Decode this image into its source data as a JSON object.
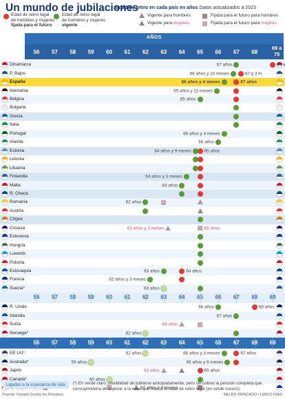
{
  "header": {
    "title": "Un mundo de jubilaciones",
    "subtitle_bold": "Edad de retiro en cada país en años",
    "subtitle_rest": " Datos actualizados a 2023"
  },
  "legend": {
    "red_text_1": "Edad de retiro legal",
    "red_text_2": "de hombres y mujeres",
    "red_text_3": "fijada para el futuro",
    "green_text_1": "Edad de retiro legal",
    "green_text_2": "de hombres y mujeres",
    "green_text_3": "vigente",
    "tri_men": "Vigente para hombres",
    "tri_women_a": "Vigente para ",
    "tri_women_b": "mujeres",
    "sq_men": "Fijada para el futuro para hombres",
    "sq_women_a": "Fijada para el futuro para ",
    "sq_women_b": "mujeres",
    "years_label": "AÑOS",
    "last_tick": "69 a 75",
    "esperanza_label": "Ligadas a la esperanza de vida"
  },
  "footnote": "(*) En verde claro, posibilidad de jubilarse anticipadamente, pero sin cobrar la pensión completa que corresponderia de esperar a la edad que marca la edad de retiro legal (en verde oscuro).",
  "source": "Fuente: Finnish Centre for Pensions",
  "credit": "BELÉN TRINCADO / CINCO DÍAS",
  "colors": {
    "red": "#e2393a",
    "green": "#5b9a36",
    "light_green": "#c6dca0",
    "grey_triangle": "#8b8b8b",
    "square": "#9c8a8a",
    "blue_header": "#2e6fb6",
    "title_blue": "#17366b",
    "spain_highlight": "#ffd83a",
    "pink_text": "#c9587e"
  },
  "chart_data": {
    "type": "scatter",
    "x_axis_ticks": [
      "56",
      "57",
      "58",
      "59",
      "60",
      "61",
      "62",
      "63",
      "64",
      "65",
      "66",
      "67",
      "68",
      "69 a 75"
    ],
    "xlim": [
      56,
      69
    ],
    "countries": [
      {
        "name": "Dinamarca",
        "points": [
          {
            "age": 67,
            "type": "green",
            "label": "67 años"
          },
          {
            "age": 69,
            "type": "red",
            "label": "69 años"
          }
        ]
      },
      {
        "name": "P. Bajos",
        "points": [
          {
            "age": 66.83,
            "type": "green",
            "label": "66 años y 10 meses"
          },
          {
            "age": 67.25,
            "type": "red",
            "label": "67 y 3 m."
          }
        ]
      },
      {
        "name": "España",
        "points": [
          {
            "age": 66.33,
            "type": "green",
            "label": "66 años y 4 meses"
          },
          {
            "age": 67,
            "type": "red",
            "label": "67 años"
          }
        ]
      },
      {
        "name": "Alemania",
        "points": [
          {
            "age": 65.92,
            "type": "green",
            "label": "65 años y 11 meses"
          },
          {
            "age": 67,
            "type": "red"
          }
        ]
      },
      {
        "name": "Bélgica",
        "points": [
          {
            "age": 65,
            "type": "green",
            "label": "65 años"
          },
          {
            "age": 67,
            "type": "red"
          }
        ]
      },
      {
        "name": "Bulgaria",
        "points": [
          {
            "age": 67,
            "type": "green"
          }
        ]
      },
      {
        "name": "Grecia",
        "points": [
          {
            "age": 67,
            "type": "green"
          }
        ]
      },
      {
        "name": "Italia",
        "points": [
          {
            "age": 67,
            "type": "green"
          }
        ]
      },
      {
        "name": "Portugal",
        "points": [
          {
            "age": 66.33,
            "type": "green",
            "label": "66 años y 4 meses"
          }
        ]
      },
      {
        "name": "Irlanda",
        "points": [
          {
            "age": 66,
            "type": "green",
            "label": "66 años"
          }
        ]
      },
      {
        "name": "Estonia",
        "points": [
          {
            "age": 64.75,
            "type": "green",
            "label": "64 años y 9 meses"
          },
          {
            "age": 65,
            "type": "red",
            "label": "65 años"
          }
        ]
      },
      {
        "name": "Letonia",
        "points": [
          {
            "age": 64.75,
            "type": "green"
          },
          {
            "age": 65,
            "type": "red"
          }
        ]
      },
      {
        "name": "Lituania",
        "points": [
          {
            "age": 64.75,
            "type": "green"
          },
          {
            "age": 65,
            "type": "red"
          }
        ]
      },
      {
        "name": "Finlandia",
        "points": [
          {
            "age": 64.25,
            "type": "green",
            "label": "64 años y 3 meses"
          },
          {
            "age": 65,
            "type": "red"
          }
        ]
      },
      {
        "name": "Malta",
        "points": [
          {
            "age": 64,
            "type": "green",
            "label": "64 años"
          },
          {
            "age": 65,
            "type": "red"
          }
        ]
      },
      {
        "name": "R. Checa",
        "points": [
          {
            "age": 64,
            "type": "green"
          },
          {
            "age": 65,
            "type": "red"
          }
        ]
      },
      {
        "name": "Rumanía",
        "points": [
          {
            "age": 62,
            "type": "green",
            "label": "62 años"
          },
          {
            "age": 65,
            "type": "tri_men"
          },
          {
            "age": 63,
            "type": "sq_women"
          },
          {
            "age": 65,
            "type": "tri_women"
          }
        ]
      },
      {
        "name": "Austria",
        "points": [
          {
            "age": 62,
            "type": "green"
          },
          {
            "age": 65,
            "type": "tri_men"
          }
        ]
      },
      {
        "name": "Chipre",
        "points": [
          {
            "age": 65,
            "type": "green"
          }
        ]
      },
      {
        "name": "Croacia",
        "points": [
          {
            "age": 63.25,
            "type": "tri_women",
            "label": "63 años y 3 meses"
          },
          {
            "age": 65,
            "type": "tri_men"
          },
          {
            "age": 65,
            "type": "sq_women",
            "label": "65 años"
          }
        ]
      },
      {
        "name": "Eslovenia",
        "points": [
          {
            "age": 65,
            "type": "green"
          }
        ]
      },
      {
        "name": "Hungría",
        "points": [
          {
            "age": 65,
            "type": "green"
          }
        ]
      },
      {
        "name": "Luxemb.",
        "points": [
          {
            "age": 65,
            "type": "green"
          }
        ]
      },
      {
        "name": "Polonia",
        "points": [
          {
            "age": 65,
            "type": "green"
          }
        ]
      },
      {
        "name": "Eslovaquia",
        "points": [
          {
            "age": 63,
            "type": "green",
            "label": "63 años"
          },
          {
            "age": 64,
            "type": "red",
            "label": "64 años"
          }
        ]
      },
      {
        "name": "Francia",
        "points": [
          {
            "age": 62.25,
            "type": "green",
            "label": "62 años y 3 meses"
          },
          {
            "age": 64,
            "type": "red"
          }
        ]
      },
      {
        "name": "Suecia*",
        "points": [
          {
            "age": 63,
            "type": "light_green",
            "label": "63 años"
          },
          {
            "age": 65,
            "type": "green"
          }
        ]
      },
      {
        "name": "R. Unido",
        "points": [
          {
            "age": 66,
            "type": "green",
            "label": "66 años"
          },
          {
            "age": 68,
            "type": "red",
            "label": "68 años"
          }
        ]
      },
      {
        "name": "Islandia",
        "points": [
          {
            "age": 67,
            "type": "green",
            "label": "67 años"
          }
        ]
      },
      {
        "name": "Suiza",
        "points": [
          {
            "age": 64,
            "type": "tri_women",
            "label": "64 años"
          },
          {
            "age": 65,
            "type": "tri_men"
          },
          {
            "age": 65,
            "type": "sq_women"
          }
        ]
      },
      {
        "name": "Noruega*",
        "points": [
          {
            "age": 62,
            "type": "light_green",
            "label": "62 años"
          },
          {
            "age": 67,
            "type": "green"
          }
        ]
      },
      {
        "name": "EE UU*",
        "points": [
          {
            "age": 62,
            "type": "light_green",
            "label": "62 años"
          },
          {
            "age": 66.33,
            "type": "green",
            "label": "66 años y 4 meses"
          },
          {
            "age": 67,
            "type": "red",
            "label": "67 años"
          }
        ]
      },
      {
        "name": "Australia*",
        "points": [
          {
            "age": 59,
            "type": "light_green",
            "label": "59 años"
          },
          {
            "age": 66.5,
            "type": "green",
            "label": "66 años y 6 meses"
          },
          {
            "age": 67,
            "type": "red"
          }
        ]
      },
      {
        "name": "Japón",
        "points": [
          {
            "age": 63,
            "type": "tri_women",
            "label": "63 años"
          },
          {
            "age": 64,
            "type": "tri_men"
          },
          {
            "age": 65,
            "type": "red",
            "label": "65 años"
          }
        ]
      },
      {
        "name": "Canadá*",
        "points": [
          {
            "age": 60,
            "type": "light_green",
            "label": "60 años"
          },
          {
            "age": 65,
            "type": "green"
          }
        ]
      },
      {
        "name": "Rusia",
        "points": [
          {
            "age": 56.5,
            "type": "tri_women",
            "label": "56 años y 6 meses"
          },
          {
            "age": 61.5,
            "type": "tri_men",
            "label": "61 años y 6 meses"
          },
          {
            "age": 60,
            "type": "sq_women"
          },
          {
            "age": 65,
            "type": "sq_men"
          }
        ]
      }
    ]
  }
}
